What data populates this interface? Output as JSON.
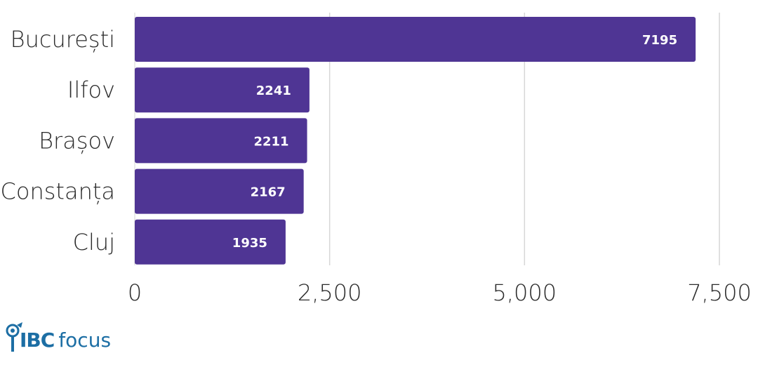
{
  "chart_data": {
    "type": "bar",
    "orientation": "horizontal",
    "title": "",
    "xlabel": "",
    "ylabel": "",
    "categories": [
      "București",
      "Ilfov",
      "Brașov",
      "Constanța",
      "Cluj"
    ],
    "values": [
      7195,
      2241,
      2211,
      2167,
      1935
    ],
    "xlim": [
      0,
      7500
    ],
    "xticks": [
      0,
      2500,
      5000,
      7500
    ],
    "xtick_labels": [
      "0",
      "2,500",
      "5,000",
      "7,500"
    ],
    "grid": "vertical",
    "data_labels": true,
    "bar_color": "#4f3594"
  },
  "logo": {
    "text_ibc": "IBC",
    "text_focus": "focus",
    "color": "#1c6ea4",
    "accent_color": "#1c6ea4"
  }
}
